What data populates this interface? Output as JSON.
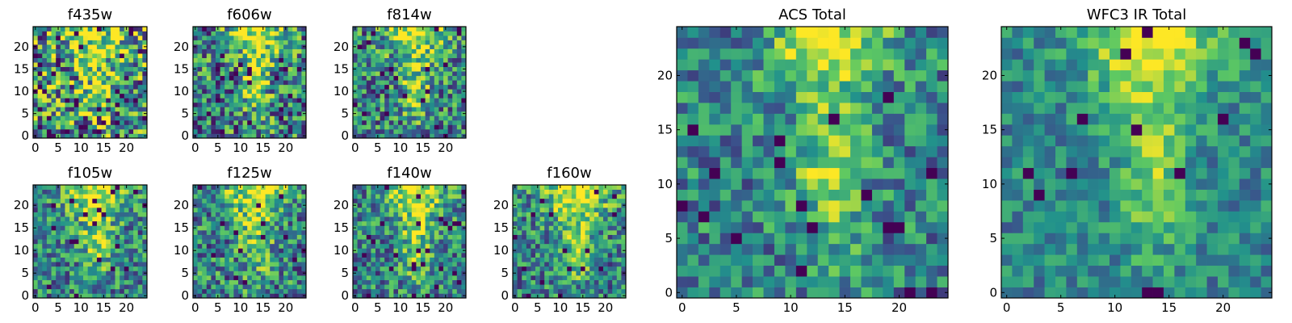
{
  "figure": {
    "colormap": "viridis",
    "color_stops": [
      "#440154",
      "#3b528b",
      "#21918c",
      "#5ec962",
      "#fde725"
    ]
  },
  "chart_data": [
    {
      "type": "heatmap",
      "title": "f435w",
      "xticks": [
        0,
        5,
        10,
        15,
        20
      ],
      "yticks": [
        0,
        5,
        10,
        15,
        20
      ],
      "xlim": [
        0,
        25
      ],
      "ylim": [
        0,
        25
      ],
      "grid_size": 25,
      "noise": 0.55,
      "sharpness": 3.0,
      "seed": 11
    },
    {
      "type": "heatmap",
      "title": "f606w",
      "xticks": [
        0,
        5,
        10,
        15,
        20
      ],
      "yticks": [
        0,
        5,
        10,
        15,
        20
      ],
      "xlim": [
        0,
        25
      ],
      "ylim": [
        0,
        25
      ],
      "grid_size": 25,
      "noise": 0.42,
      "sharpness": 2.2,
      "seed": 23
    },
    {
      "type": "heatmap",
      "title": "f814w",
      "xticks": [
        0,
        5,
        10,
        15,
        20
      ],
      "yticks": [
        0,
        5,
        10,
        15,
        20
      ],
      "xlim": [
        0,
        25
      ],
      "ylim": [
        0,
        25
      ],
      "grid_size": 25,
      "noise": 0.38,
      "sharpness": 2.2,
      "seed": 37
    },
    {
      "type": "heatmap",
      "title": "f105w",
      "xticks": [
        0,
        5,
        10,
        15,
        20
      ],
      "yticks": [
        0,
        5,
        10,
        15,
        20
      ],
      "xlim": [
        0,
        25
      ],
      "ylim": [
        0,
        25
      ],
      "grid_size": 25,
      "noise": 0.33,
      "sharpness": 2.4,
      "seed": 41
    },
    {
      "type": "heatmap",
      "title": "f125w",
      "xticks": [
        0,
        5,
        10,
        15,
        20
      ],
      "yticks": [
        0,
        5,
        10,
        15,
        20
      ],
      "xlim": [
        0,
        25
      ],
      "ylim": [
        0,
        25
      ],
      "grid_size": 25,
      "noise": 0.36,
      "sharpness": 2.4,
      "seed": 53
    },
    {
      "type": "heatmap",
      "title": "f140w",
      "xticks": [
        0,
        5,
        10,
        15,
        20
      ],
      "yticks": [
        0,
        5,
        10,
        15,
        20
      ],
      "xlim": [
        0,
        25
      ],
      "ylim": [
        0,
        25
      ],
      "grid_size": 25,
      "noise": 0.33,
      "sharpness": 2.4,
      "seed": 67
    },
    {
      "type": "heatmap",
      "title": "f160w",
      "xticks": [
        0,
        5,
        10,
        15,
        20
      ],
      "yticks": [
        0,
        5,
        10,
        15,
        20
      ],
      "xlim": [
        0,
        25
      ],
      "ylim": [
        0,
        25
      ],
      "grid_size": 25,
      "noise": 0.33,
      "sharpness": 2.6,
      "seed": 79
    },
    {
      "type": "heatmap",
      "title": "ACS Total",
      "xticks": [
        0,
        5,
        10,
        15,
        20
      ],
      "yticks": [
        0,
        5,
        10,
        15,
        20
      ],
      "xlim": [
        0,
        25
      ],
      "ylim": [
        0,
        25
      ],
      "grid_size": 25,
      "noise": 0.28,
      "sharpness": 1.8,
      "seed": 83
    },
    {
      "type": "heatmap",
      "title": "WFC3 IR Total",
      "xticks": [
        0,
        5,
        10,
        15,
        20
      ],
      "yticks": [
        0,
        5,
        10,
        15,
        20
      ],
      "xlim": [
        0,
        25
      ],
      "ylim": [
        0,
        25
      ],
      "grid_size": 25,
      "noise": 0.2,
      "sharpness": 2.2,
      "seed": 97
    }
  ]
}
